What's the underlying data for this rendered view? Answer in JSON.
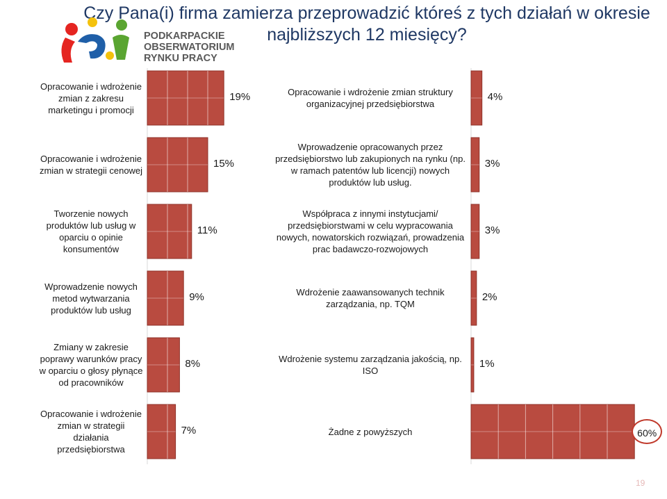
{
  "header": {
    "title": "Czy Pana(i) firma zamierza przeprowadzić któreś z tych działań w okresie najbliższych 12 miesięcy?"
  },
  "logo": {
    "lines": [
      "PODKARPACKIE",
      "OBSERWATORIUM",
      "RYNKU PRACY"
    ],
    "colors": {
      "red": "#e52521",
      "blue": "#1f5fa8",
      "green": "#5aa531",
      "yellow": "#f4c20d"
    }
  },
  "footer": {
    "page_number": "19"
  },
  "colors": {
    "bar": "#b94b40",
    "bar_edge": "#8e3229",
    "grid": "#ffffff",
    "highlight_circle": "#c0392b"
  },
  "chart_data": [
    {
      "type": "bar",
      "orientation": "horizontal",
      "title": "",
      "xlim": [
        0,
        20
      ],
      "categories": [
        "Opracowanie i wdrożenie zmian z zakresu marketingu i promocji",
        "Opracowanie i wdrożenie zmian w strategii cenowej",
        "Tworzenie nowych produktów lub usług w oparciu o opinie konsumentów",
        "Wprowadzenie nowych metod wytwarzania produktów lub usług",
        "Zmiany w zakresie poprawy warunków pracy w oparciu o głosy płynące od pracowników",
        "Opracowanie i wdrożenie zmian w strategii działania przedsiębiorstwa"
      ],
      "values": [
        19,
        15,
        11,
        9,
        8,
        7
      ],
      "labels": [
        "19%",
        "15%",
        "11%",
        "9%",
        "8%",
        "7%"
      ]
    },
    {
      "type": "bar",
      "orientation": "horizontal",
      "title": "",
      "xlim": [
        0,
        60
      ],
      "categories": [
        "Opracowanie i wdrożenie zmian struktury organizacyjnej przedsiębiorstwa",
        "Wprowadzenie opracowanych przez przedsiębiorstwo lub zakupionych na rynku (np. w ramach patentów lub licencji) nowych produktów lub usług.",
        "Współpraca z innymi instytucjami/ przedsiębiorstwami w celu wypracowania nowych, nowatorskich rozwiązań, prowadzenia prac badawczo-rozwojowych",
        "Wdrożenie zaawansowanych technik zarządzania, np. TQM",
        "Wdrożenie systemu zarządzania jakością, np. ISO",
        "Żadne z powyższych"
      ],
      "values": [
        4,
        3,
        3,
        2,
        1,
        60
      ],
      "labels": [
        "4%",
        "3%",
        "3%",
        "2%",
        "1%",
        "60%"
      ],
      "highlighted": "60%"
    }
  ]
}
